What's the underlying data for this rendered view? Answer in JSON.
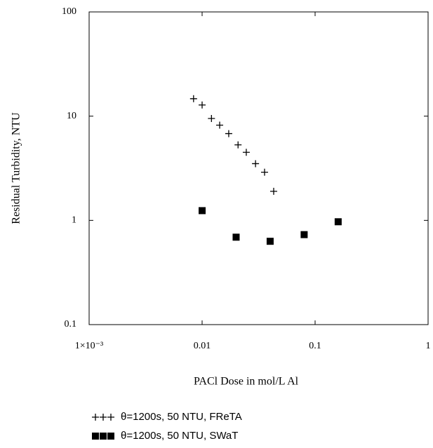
{
  "chart_data": {
    "type": "scatter",
    "x_label": "PACl Dose in mol/L Al",
    "y_label": "Residual Turbidity, NTU",
    "xscale": "log",
    "yscale": "log",
    "xlim": [
      0.001,
      1
    ],
    "ylim": [
      0.1,
      100
    ],
    "xticks": [
      {
        "value": 0.001,
        "label": "1×10⁻³"
      },
      0.01,
      0.1,
      1
    ],
    "yticks": [
      0.1,
      1,
      10,
      100
    ],
    "grid": false,
    "legend": "bottom",
    "series": [
      {
        "name": "θ=1200s, 50 NTU, FReTA",
        "color": "#000000",
        "marker": "plus",
        "x": [
          0.0084,
          0.01,
          0.0121,
          0.0143,
          0.0172,
          0.0208,
          0.0246,
          0.0297,
          0.0357,
          0.043
        ],
        "values": [
          14.7,
          12.8,
          9.5,
          8.2,
          6.8,
          5.3,
          4.5,
          3.5,
          2.9,
          1.9
        ]
      },
      {
        "name": "θ=1200s, 50 NTU, SWaT",
        "color": "#000000",
        "marker": "square",
        "x": [
          0.01,
          0.02,
          0.04,
          0.08,
          0.16
        ],
        "values": [
          1.24,
          0.69,
          0.63,
          0.73,
          0.97
        ]
      }
    ]
  }
}
